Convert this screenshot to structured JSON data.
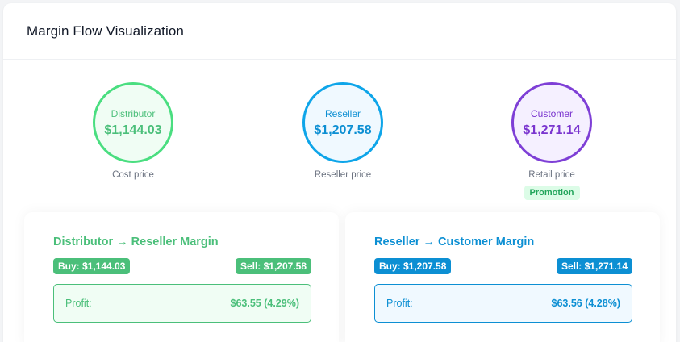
{
  "title": "Margin Flow Visualization",
  "nodes": {
    "distributor": {
      "label": "Distributor",
      "amount": "$1,144.03",
      "caption": "Cost price"
    },
    "reseller": {
      "label": "Reseller",
      "amount": "$1,207.58",
      "caption": "Reseller price"
    },
    "customer": {
      "label": "Customer",
      "amount": "$1,271.14",
      "caption": "Retail price",
      "badge": "Promotion"
    }
  },
  "margins": [
    {
      "title": "Distributor → Reseller Margin",
      "buy": "Buy: $1,144.03",
      "sell": "Sell: $1,207.58",
      "profit_label": "Profit:",
      "profit_value": "$63.55 (4.29%)"
    },
    {
      "title": "Reseller → Customer Margin",
      "buy": "Buy: $1,207.58",
      "sell": "Sell: $1,271.14",
      "profit_label": "Profit:",
      "profit_value": "$63.56 (4.28%)"
    }
  ],
  "colors": {
    "distributor": "#4ade80",
    "reseller": "#0ea5e9",
    "customer": "#7e3fd6"
  }
}
